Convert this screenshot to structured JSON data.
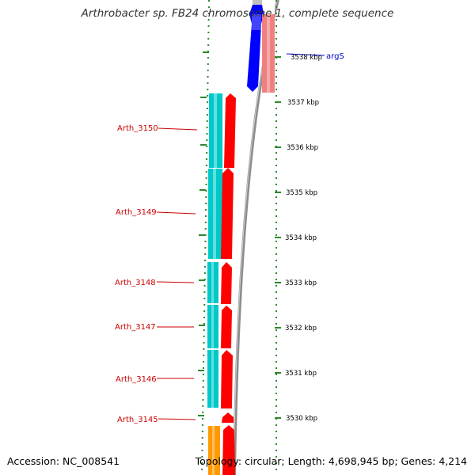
{
  "title": "Arthrobacter sp. FB24 chromosome 1, complete sequence",
  "accession": "Accession: NC_008541",
  "summary": "Topology: circular; Length: 4,698,945 bp; Genes: 4,214",
  "colors": {
    "forward_cds": "#ff0000",
    "reverse_cds": "#00c8c8",
    "blue_cds": "#0000ff",
    "pink_cds": "#f08080",
    "orange_cds": "#ff9900",
    "backbone": "#8c8c8c",
    "ruler": "#2a8a2a",
    "label_red": "#cc0000",
    "label_blue": "#0000cc"
  },
  "scale_labels": [
    "3538 kbp",
    "3537 kbp",
    "3536 kbp",
    "3535 kbp",
    "3534 kbp",
    "3533 kbp",
    "3532 kbp",
    "3531 kbp",
    "3530 kbp"
  ],
  "gene_labels": [
    {
      "name": "Arth_3150",
      "color": "red"
    },
    {
      "name": "Arth_3149",
      "color": "red"
    },
    {
      "name": "Arth_3148",
      "color": "red"
    },
    {
      "name": "Arth_3147",
      "color": "red"
    },
    {
      "name": "Arth_3146",
      "color": "red"
    },
    {
      "name": "Arth_3145",
      "color": "red"
    },
    {
      "name": "argS",
      "color": "blue"
    }
  ]
}
